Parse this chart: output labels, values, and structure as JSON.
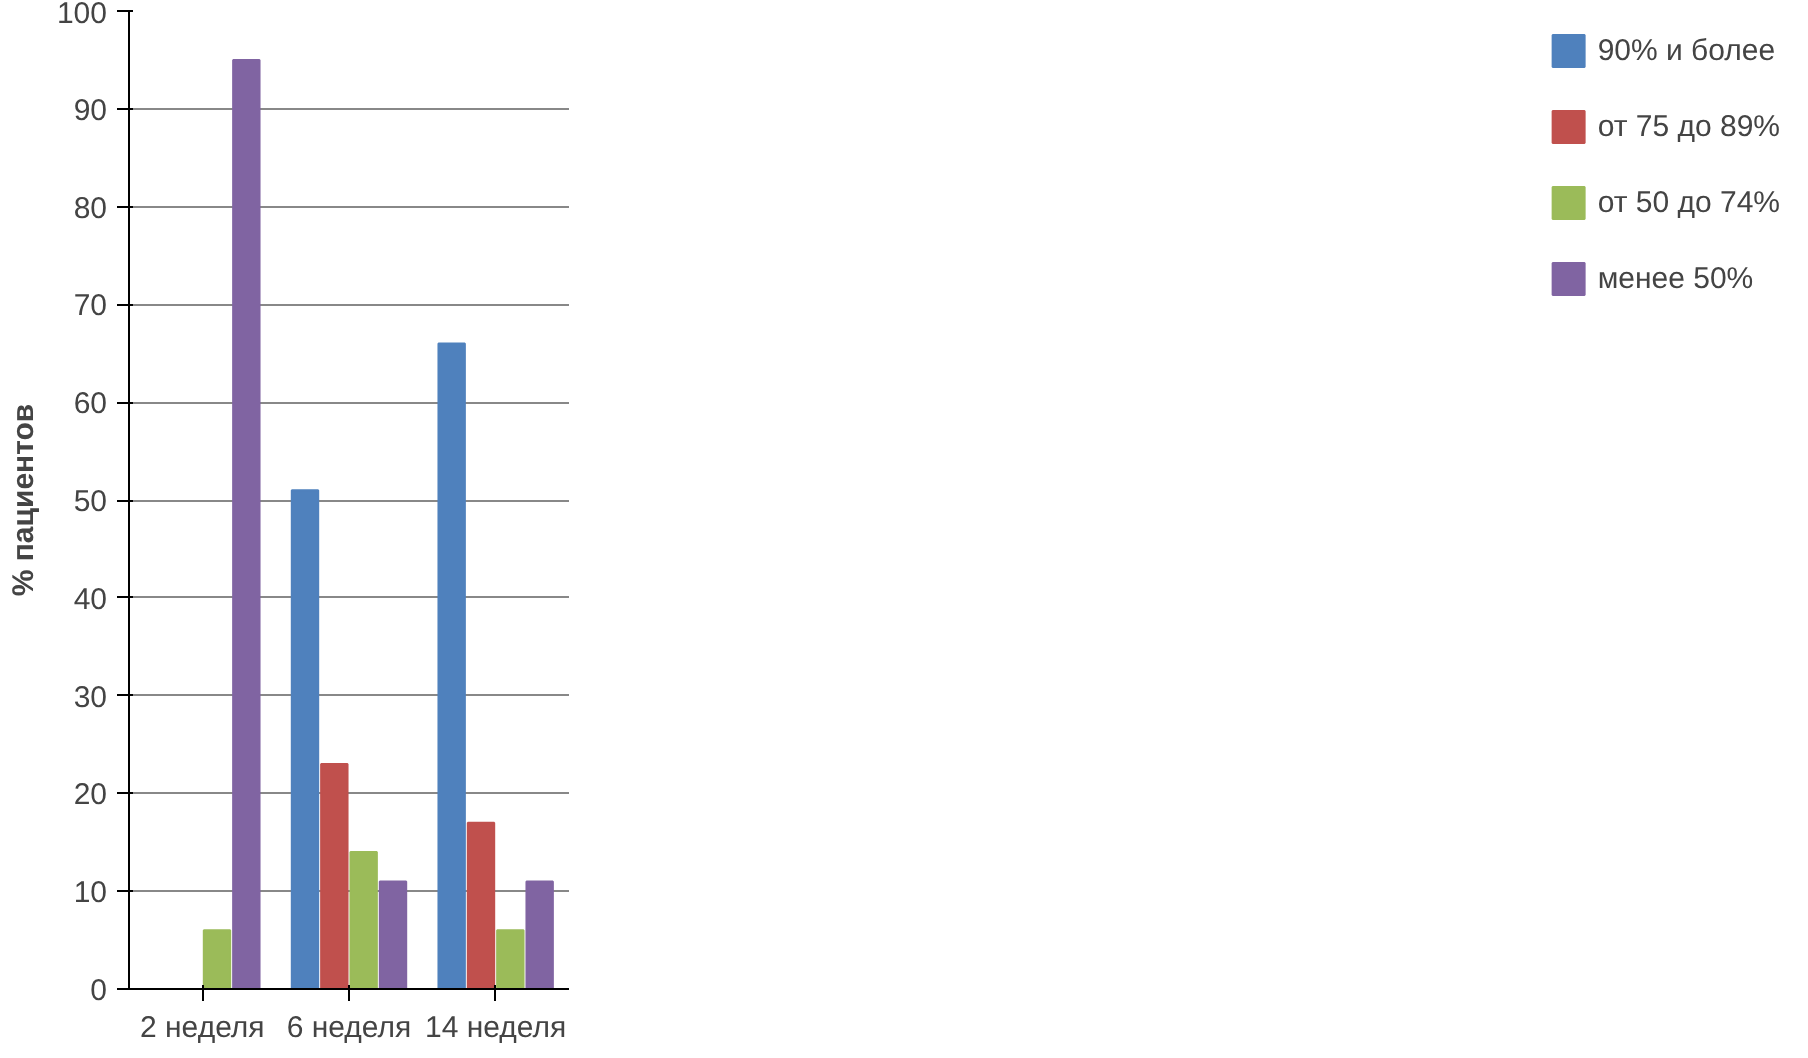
{
  "chart_data": {
    "type": "bar",
    "ylabel": "% пациентов",
    "categories": [
      "2 неделя",
      "6 неделя",
      "14 неделя"
    ],
    "series": [
      {
        "name": "90% и более",
        "color": "#4f81bd",
        "values": [
          0,
          51,
          66
        ]
      },
      {
        "name": "от 75 до 89%",
        "color": "#c0504d",
        "values": [
          0,
          23,
          17
        ]
      },
      {
        "name": "от 50 до 74%",
        "color": "#9bbb59",
        "values": [
          6,
          14,
          6
        ]
      },
      {
        "name": "менее 50%",
        "color": "#8064a2",
        "values": [
          95,
          11,
          11
        ]
      }
    ],
    "ylim": [
      0,
      100
    ],
    "yticks": [
      0,
      10,
      20,
      30,
      40,
      50,
      60,
      70,
      80,
      90,
      100
    ],
    "grid": "y",
    "legend": "right"
  }
}
